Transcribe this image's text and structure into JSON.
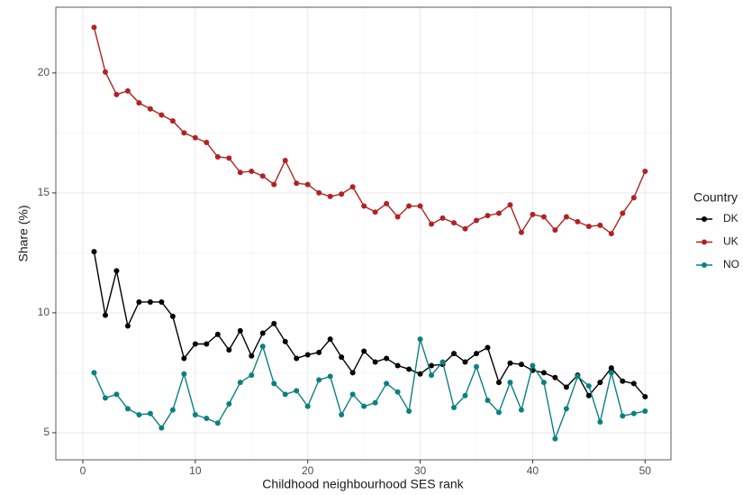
{
  "chart_data": {
    "type": "line",
    "x_label": "Childhood neighbourhood SES rank",
    "y_label": "Share (%)",
    "legend_title": "Country",
    "legend": "right",
    "grid": true,
    "x": [
      1,
      2,
      3,
      4,
      5,
      6,
      7,
      8,
      9,
      10,
      11,
      12,
      13,
      14,
      15,
      16,
      17,
      18,
      19,
      20,
      21,
      22,
      23,
      24,
      25,
      26,
      27,
      28,
      29,
      30,
      31,
      32,
      33,
      34,
      35,
      36,
      37,
      38,
      39,
      40,
      41,
      42,
      43,
      44,
      45,
      46,
      47,
      48,
      49,
      50
    ],
    "xlim": [
      -2.4,
      52.3
    ],
    "xticks": [
      0,
      10,
      20,
      30,
      40,
      50
    ],
    "ylim": [
      3.87,
      22.74
    ],
    "yticks": [
      5,
      10,
      15,
      20
    ],
    "series": [
      {
        "name": "DK",
        "color": "#000000",
        "values": [
          12.55,
          9.9,
          11.75,
          9.45,
          10.45,
          10.45,
          10.45,
          9.85,
          8.1,
          8.7,
          8.7,
          9.1,
          8.45,
          9.25,
          8.2,
          9.15,
          9.55,
          8.8,
          8.1,
          8.25,
          8.35,
          8.9,
          8.15,
          7.5,
          8.4,
          7.95,
          8.1,
          7.8,
          7.65,
          7.45,
          7.8,
          7.85,
          8.3,
          7.95,
          8.3,
          8.55,
          7.1,
          7.9,
          7.85,
          7.6,
          7.5,
          7.3,
          6.9,
          7.4,
          6.55,
          7.1,
          7.7,
          7.15,
          7.05,
          6.5
        ]
      },
      {
        "name": "UK",
        "color": "#b22222",
        "values": [
          21.9,
          20.04,
          19.1,
          19.25,
          18.75,
          18.5,
          18.25,
          18.0,
          17.5,
          17.3,
          17.1,
          16.5,
          16.45,
          15.85,
          15.9,
          15.7,
          15.35,
          16.35,
          15.4,
          15.35,
          15.0,
          14.85,
          14.95,
          15.25,
          14.45,
          14.2,
          14.55,
          14.0,
          14.45,
          14.45,
          13.7,
          13.95,
          13.75,
          13.5,
          13.85,
          14.05,
          14.15,
          14.5,
          13.35,
          14.1,
          14.0,
          13.45,
          14.0,
          13.8,
          13.6,
          13.65,
          13.3,
          14.15,
          14.8,
          15.9
        ]
      },
      {
        "name": "NO",
        "color": "#0b8080",
        "values": [
          7.5,
          6.45,
          6.6,
          6.0,
          5.75,
          5.8,
          5.2,
          5.95,
          7.45,
          5.75,
          5.6,
          5.4,
          6.2,
          7.1,
          7.4,
          8.6,
          7.05,
          6.6,
          6.75,
          6.1,
          7.2,
          7.35,
          5.75,
          6.6,
          6.1,
          6.25,
          7.05,
          6.7,
          5.9,
          8.9,
          7.4,
          7.95,
          6.05,
          6.55,
          7.75,
          6.35,
          5.85,
          7.1,
          5.95,
          7.8,
          7.1,
          4.75,
          6.0,
          7.35,
          6.95,
          5.45,
          7.5,
          5.7,
          5.8,
          5.9
        ]
      }
    ]
  }
}
